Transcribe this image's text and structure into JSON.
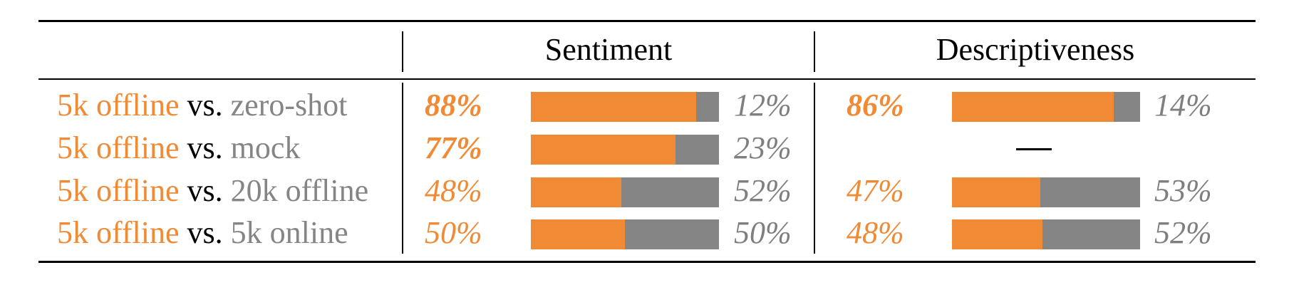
{
  "colors": {
    "accent": "#f08a34",
    "other": "#858585",
    "text": "#000000"
  },
  "chart_data": {
    "type": "table",
    "columns": [
      {
        "key": "sentiment",
        "title": "Sentiment"
      },
      {
        "key": "descriptiveness",
        "title": "Descriptiveness"
      }
    ],
    "rows": [
      {
        "a": "5k offline",
        "vs": "vs.",
        "b": "zero-shot",
        "sentiment": {
          "win": 88,
          "lose": 12,
          "win_label": "88%",
          "lose_label": "12%",
          "bold": true
        },
        "descriptiveness": {
          "win": 86,
          "lose": 14,
          "win_label": "86%",
          "lose_label": "14%",
          "bold": true
        }
      },
      {
        "a": "5k offline",
        "vs": "vs.",
        "b": "mock",
        "sentiment": {
          "win": 77,
          "lose": 23,
          "win_label": "77%",
          "lose_label": "23%",
          "bold": true
        },
        "descriptiveness": null
      },
      {
        "a": "5k offline",
        "vs": "vs.",
        "b": "20k offline",
        "sentiment": {
          "win": 48,
          "lose": 52,
          "win_label": "48%",
          "lose_label": "52%",
          "bold": false
        },
        "descriptiveness": {
          "win": 47,
          "lose": 53,
          "win_label": "47%",
          "lose_label": "53%",
          "bold": false
        }
      },
      {
        "a": "5k offline",
        "vs": "vs.",
        "b": "5k online",
        "sentiment": {
          "win": 50,
          "lose": 50,
          "win_label": "50%",
          "lose_label": "50%",
          "bold": false
        },
        "descriptiveness": {
          "win": 48,
          "lose": 52,
          "win_label": "48%",
          "lose_label": "52%",
          "bold": false
        }
      }
    ]
  }
}
